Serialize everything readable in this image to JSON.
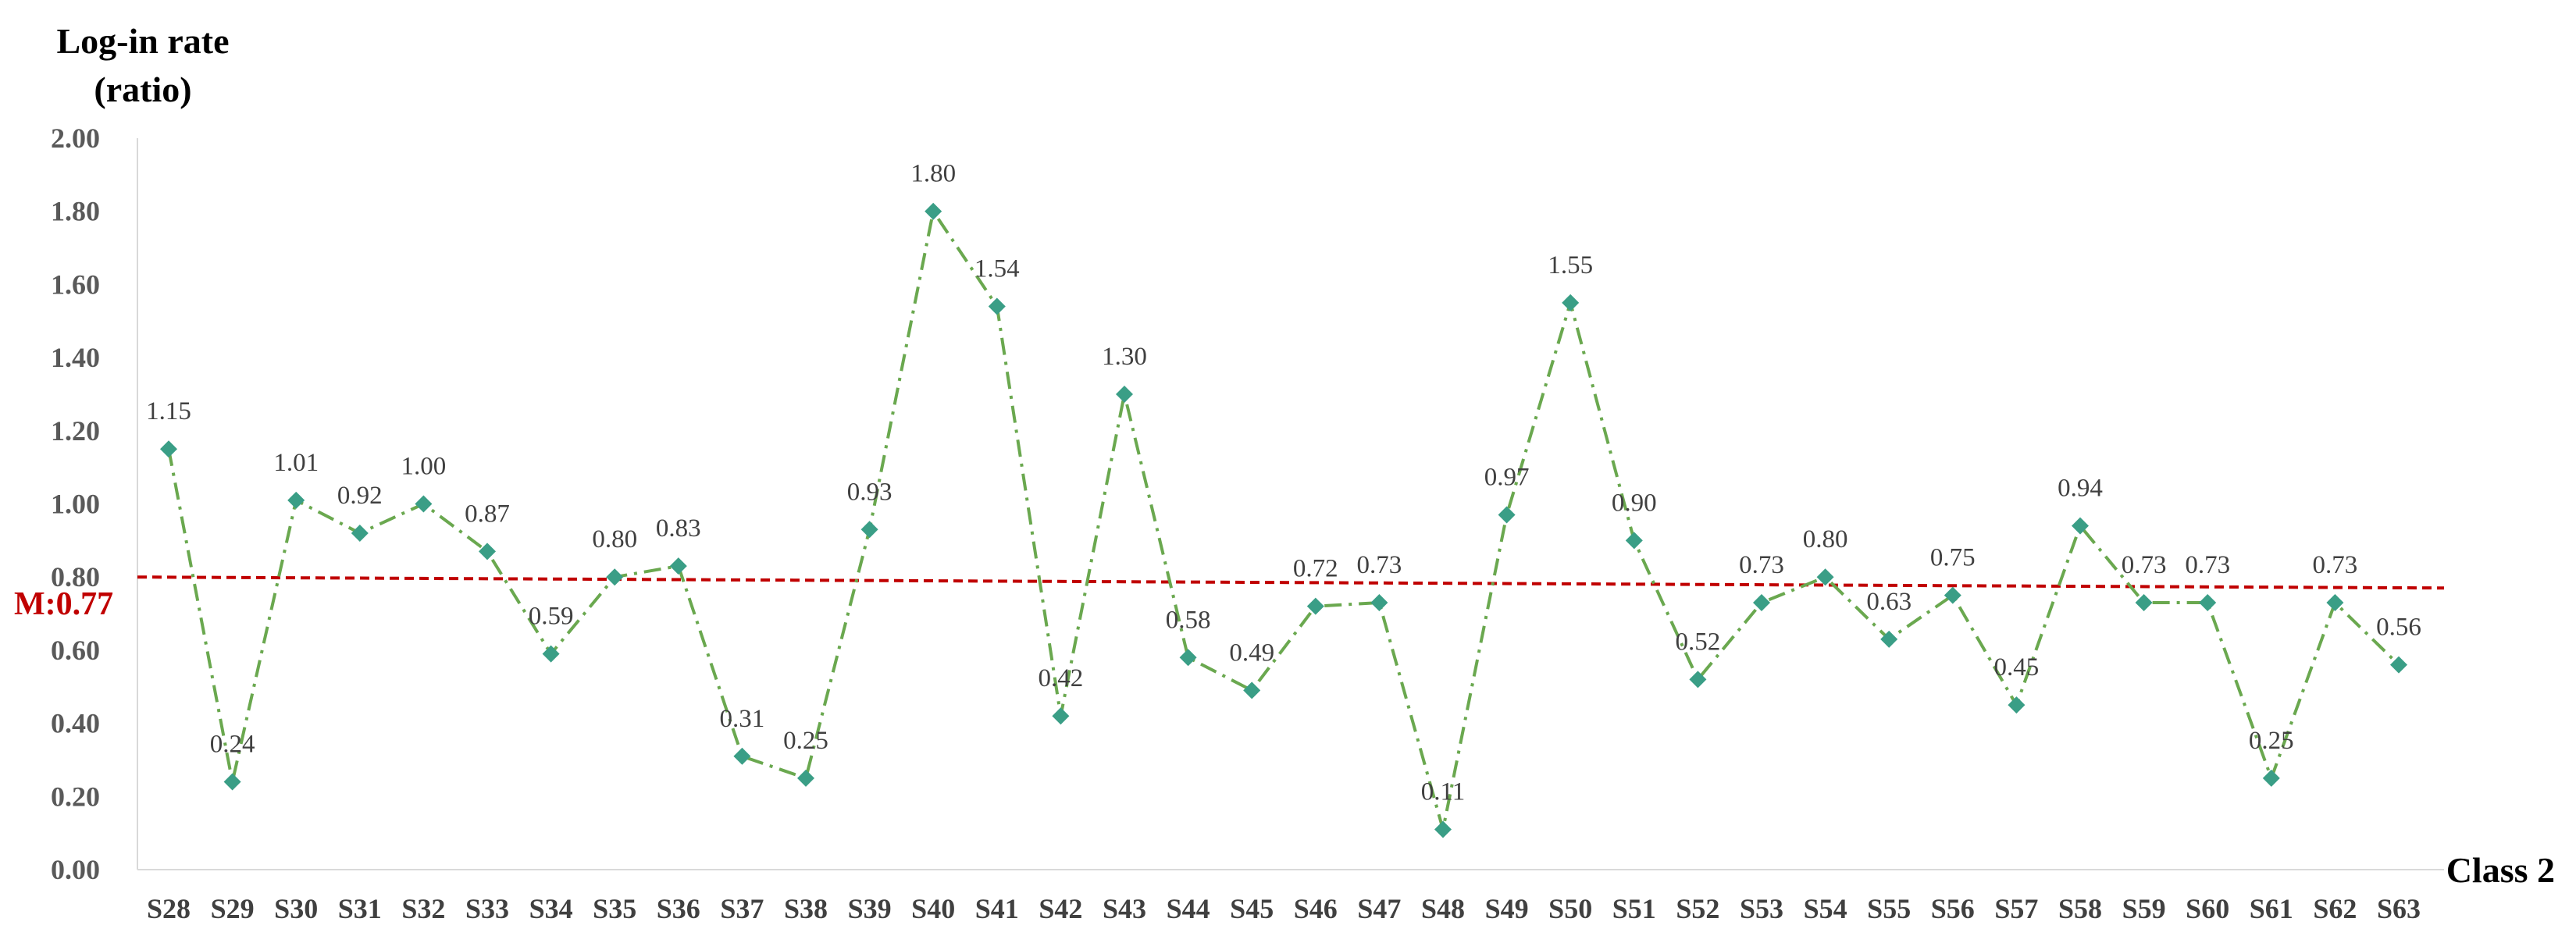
{
  "chart_data": {
    "type": "line",
    "ylabel_line1": "Log-in rate",
    "ylabel_line2": "(ratio)",
    "xlabel": "Class 2",
    "ylim": [
      0,
      2.0
    ],
    "yticks": [
      "0.00",
      "0.20",
      "0.40",
      "0.60",
      "0.80",
      "1.00",
      "1.20",
      "1.40",
      "1.60",
      "1.80",
      "2.00"
    ],
    "categories": [
      "S28",
      "S29",
      "S30",
      "S31",
      "S32",
      "S33",
      "S34",
      "S35",
      "S36",
      "S37",
      "S38",
      "S39",
      "S40",
      "S41",
      "S42",
      "S43",
      "S44",
      "S45",
      "S46",
      "S47",
      "S48",
      "S49",
      "S50",
      "S51",
      "S52",
      "S53",
      "S54",
      "S55",
      "S56",
      "S57",
      "S58",
      "S59",
      "S60",
      "S61",
      "S62",
      "S63"
    ],
    "values": [
      1.15,
      0.24,
      1.01,
      0.92,
      1.0,
      0.87,
      0.59,
      0.8,
      0.83,
      0.31,
      0.25,
      0.93,
      1.8,
      1.54,
      0.42,
      1.3,
      0.58,
      0.49,
      0.72,
      0.73,
      0.11,
      0.97,
      1.55,
      0.9,
      0.52,
      0.73,
      0.8,
      0.63,
      0.75,
      0.45,
      0.94,
      0.73,
      0.73,
      0.25,
      0.73,
      0.56
    ],
    "labels": [
      "1.15",
      "0.24",
      "1.01",
      "0.92",
      "1.00",
      "0.87",
      "0.59",
      "0.80",
      "0.83",
      "0.31",
      "0.25",
      "0.93",
      "1.80",
      "1.54",
      "0.42",
      "1.30",
      "0.58",
      "0.49",
      "0.72",
      "0.73",
      "0.11",
      "0.97",
      "1.55",
      "0.90",
      "0.52",
      "0.73",
      "0.80",
      "0.63",
      "0.75",
      "0.45",
      "0.94",
      "0.73",
      "0.73",
      "0.25",
      "0.73",
      "0.56"
    ],
    "mean_label": "M:0.77",
    "mean_line": {
      "start": 0.8,
      "end": 0.77,
      "style": "dashed"
    },
    "line_style": "dash-dot",
    "colors": {
      "line": "#6aa84f",
      "marker": "#3a9e86",
      "mean": "#c00000",
      "axis": "#d9d9d9"
    },
    "grid": false
  }
}
